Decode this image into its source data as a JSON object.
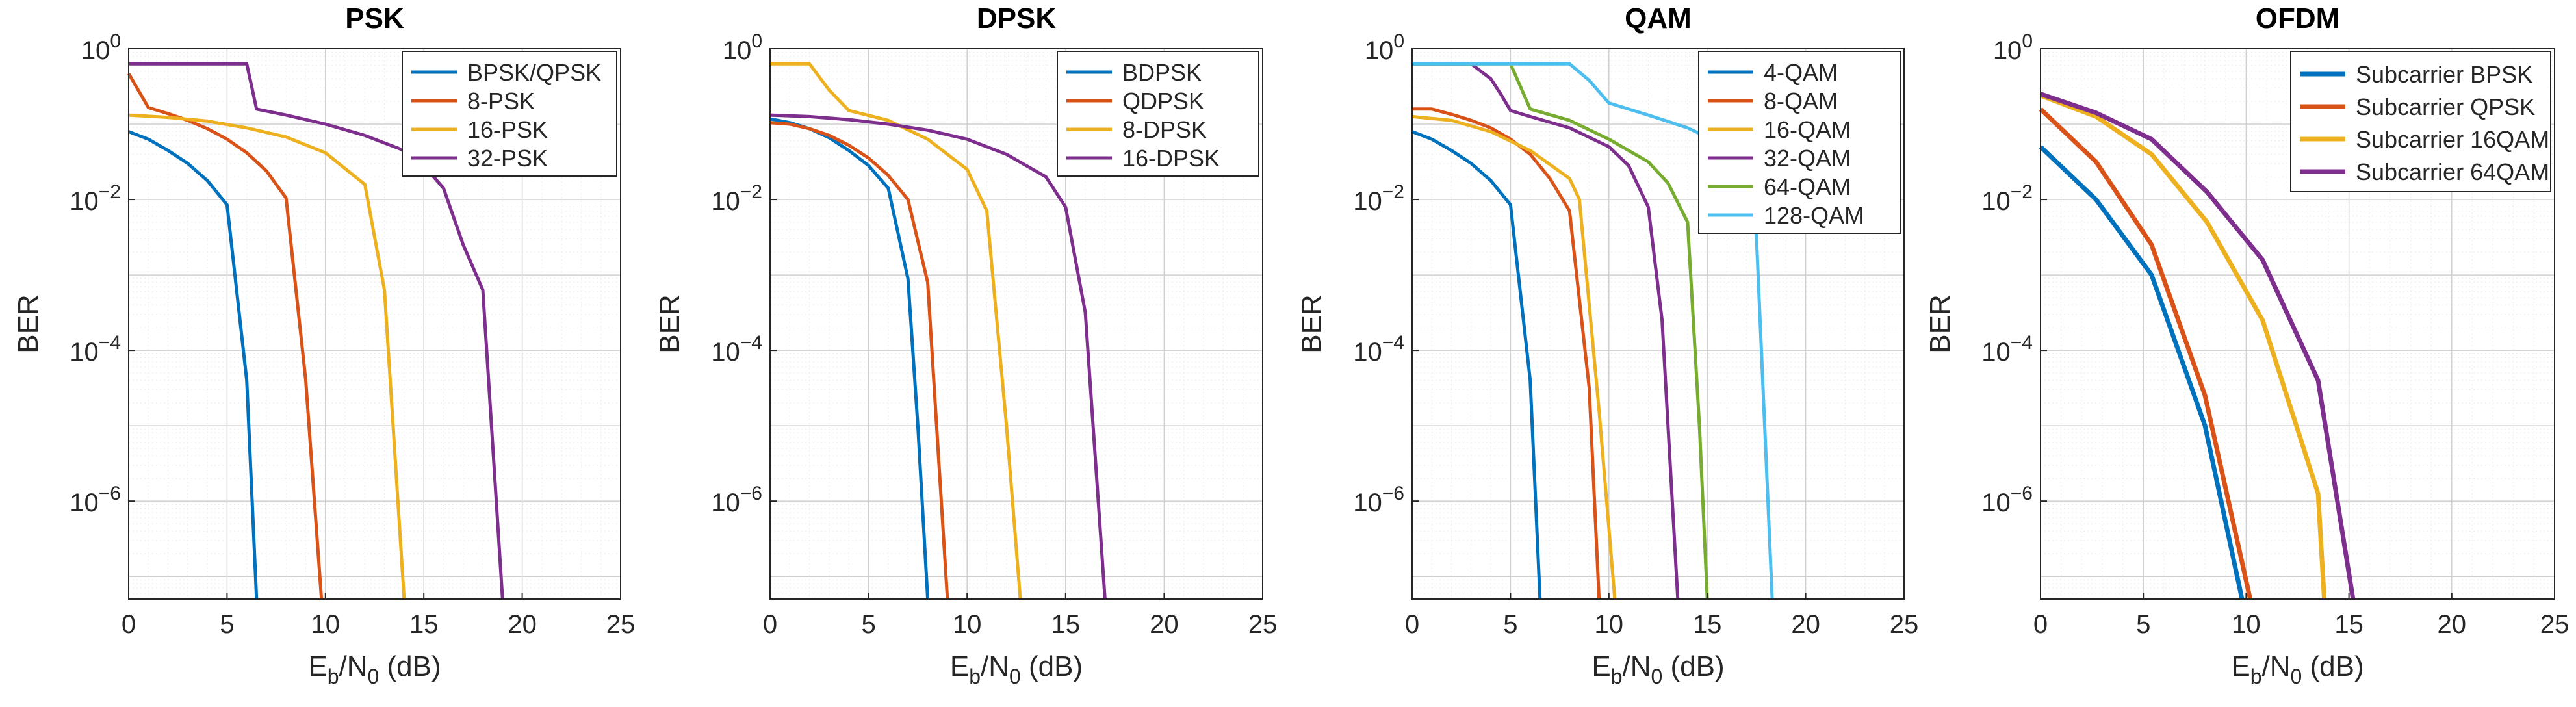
{
  "chart_data": [
    {
      "type": "line",
      "title": "PSK",
      "xlabel": "Eb/N0 (dB)",
      "ylabel": "BER",
      "xlim": [
        0,
        25
      ],
      "ylim_log10": [
        -7.3,
        0
      ],
      "xscale": "linear",
      "yscale": "log",
      "x_ticks": [
        0,
        5,
        10,
        15,
        20,
        25
      ],
      "y_ticks": [
        "10^0",
        "10^-2",
        "10^-4",
        "10^-6"
      ],
      "grid": true,
      "legend_position": "top-right",
      "series": [
        {
          "name": "BPSK/QPSK",
          "color": "#0072BD",
          "x": [
            0,
            1,
            2,
            3,
            4,
            5,
            6,
            6.5
          ],
          "log10_y": [
            -1.1,
            -1.2,
            -1.35,
            -1.52,
            -1.75,
            -2.07,
            -4.4,
            -7.3
          ]
        },
        {
          "name": "8-PSK",
          "color": "#D95319",
          "x": [
            0,
            1,
            2,
            3,
            4,
            5,
            6,
            7,
            8,
            9,
            9.8
          ],
          "log10_y": [
            -0.33,
            -0.78,
            -0.86,
            -0.95,
            -1.06,
            -1.2,
            -1.38,
            -1.62,
            -1.98,
            -4.4,
            -7.3
          ]
        },
        {
          "name": "16-PSK",
          "color": "#EDB120",
          "x": [
            0,
            2,
            4,
            6,
            8,
            10,
            12,
            13,
            14
          ],
          "log10_y": [
            -0.88,
            -0.91,
            -0.96,
            -1.05,
            -1.17,
            -1.38,
            -1.8,
            -3.2,
            -7.3
          ]
        },
        {
          "name": "32-PSK",
          "color": "#7E2F8E",
          "x": [
            0,
            6,
            6.5,
            8,
            10,
            12,
            14,
            15,
            16,
            17,
            18,
            19
          ],
          "log10_y": [
            -0.2,
            -0.2,
            -0.8,
            -0.88,
            -1.0,
            -1.15,
            -1.35,
            -1.55,
            -1.85,
            -2.6,
            -3.2,
            -7.3
          ]
        }
      ]
    },
    {
      "type": "line",
      "title": "DPSK",
      "xlabel": "Eb/N0 (dB)",
      "ylabel": "BER",
      "xlim": [
        0,
        25
      ],
      "ylim_log10": [
        -7.3,
        0
      ],
      "xscale": "linear",
      "yscale": "log",
      "x_ticks": [
        0,
        5,
        10,
        15,
        20,
        25
      ],
      "y_ticks": [
        "10^0",
        "10^-2",
        "10^-4",
        "10^-6"
      ],
      "grid": true,
      "legend_position": "top-right",
      "series": [
        {
          "name": "BDPSK",
          "color": "#0072BD",
          "x": [
            0,
            1,
            2,
            3,
            4,
            5,
            6,
            7,
            7.5,
            8
          ],
          "log10_y": [
            -0.93,
            -0.98,
            -1.06,
            -1.18,
            -1.35,
            -1.55,
            -1.85,
            -3.05,
            -5.0,
            -7.3
          ]
        },
        {
          "name": "QDPSK",
          "color": "#D95319",
          "x": [
            0,
            1,
            2,
            3,
            4,
            5,
            6,
            7,
            8,
            8.5,
            9
          ],
          "log10_y": [
            -0.98,
            -1.0,
            -1.06,
            -1.15,
            -1.28,
            -1.45,
            -1.68,
            -2.0,
            -3.1,
            -5.2,
            -7.3
          ]
        },
        {
          "name": "8-DPSK",
          "color": "#EDB120",
          "x": [
            0,
            2,
            3,
            4,
            6,
            8,
            10,
            11,
            12,
            12.7
          ],
          "log10_y": [
            -0.2,
            -0.2,
            -0.55,
            -0.82,
            -0.95,
            -1.2,
            -1.6,
            -2.15,
            -5.0,
            -7.3
          ]
        },
        {
          "name": "16-DPSK",
          "color": "#7E2F8E",
          "x": [
            0,
            2,
            4,
            6,
            8,
            10,
            12,
            14,
            15,
            16,
            17
          ],
          "log10_y": [
            -0.88,
            -0.9,
            -0.94,
            -1.0,
            -1.08,
            -1.2,
            -1.4,
            -1.7,
            -2.1,
            -3.5,
            -7.3
          ]
        }
      ]
    },
    {
      "type": "line",
      "title": "QAM",
      "xlabel": "Eb/N0 (dB)",
      "ylabel": "BER",
      "xlim": [
        0,
        25
      ],
      "ylim_log10": [
        -7.3,
        0
      ],
      "xscale": "linear",
      "yscale": "log",
      "x_ticks": [
        0,
        5,
        10,
        15,
        20,
        25
      ],
      "y_ticks": [
        "10^0",
        "10^-2",
        "10^-4",
        "10^-6"
      ],
      "grid": true,
      "legend_position": "top-right",
      "series": [
        {
          "name": "4-QAM",
          "color": "#0072BD",
          "x": [
            0,
            1,
            2,
            3,
            4,
            5,
            6,
            6.5
          ],
          "log10_y": [
            -1.1,
            -1.2,
            -1.35,
            -1.52,
            -1.75,
            -2.07,
            -4.4,
            -7.3
          ]
        },
        {
          "name": "8-QAM",
          "color": "#D95319",
          "x": [
            0,
            1,
            2,
            3,
            4,
            5,
            6,
            7,
            8,
            9,
            9.5
          ],
          "log10_y": [
            -0.8,
            -0.8,
            -0.87,
            -0.95,
            -1.05,
            -1.2,
            -1.4,
            -1.72,
            -2.15,
            -4.5,
            -7.3
          ]
        },
        {
          "name": "16-QAM",
          "color": "#EDB120",
          "x": [
            0,
            2,
            4,
            6,
            8,
            8.5,
            9.5,
            10.3
          ],
          "log10_y": [
            -0.9,
            -0.95,
            -1.1,
            -1.35,
            -1.72,
            -2.0,
            -4.8,
            -7.3
          ]
        },
        {
          "name": "32-QAM",
          "color": "#7E2F8E",
          "x": [
            0,
            3,
            4,
            4.5,
            5,
            6,
            8,
            10,
            11,
            12,
            12.7,
            13.5
          ],
          "log10_y": [
            -0.2,
            -0.2,
            -0.4,
            -0.6,
            -0.82,
            -0.9,
            -1.05,
            -1.3,
            -1.55,
            -2.1,
            -3.6,
            -7.3
          ]
        },
        {
          "name": "64-QAM",
          "color": "#77AC30",
          "x": [
            0,
            5,
            6,
            8,
            10,
            12,
            13,
            14,
            14.6,
            15
          ],
          "log10_y": [
            -0.2,
            -0.2,
            -0.8,
            -0.95,
            -1.2,
            -1.5,
            -1.78,
            -2.3,
            -5.0,
            -7.3
          ]
        },
        {
          "name": "128-QAM",
          "color": "#4DBEEE",
          "x": [
            0,
            8,
            9,
            10,
            12,
            14,
            16,
            17,
            17.5,
            18.3
          ],
          "log10_y": [
            -0.2,
            -0.2,
            -0.42,
            -0.72,
            -0.88,
            -1.05,
            -1.3,
            -1.6,
            -2.5,
            -7.3
          ]
        }
      ]
    },
    {
      "type": "line",
      "title": "OFDM",
      "xlabel": "Eb/N0 (dB)",
      "ylabel": "BER",
      "xlim": [
        0,
        25
      ],
      "ylim_log10": [
        -7.3,
        0
      ],
      "xscale": "linear",
      "yscale": "log",
      "x_ticks": [
        0,
        5,
        10,
        15,
        20,
        25
      ],
      "y_ticks": [
        "10^0",
        "10^-2",
        "10^-4",
        "10^-6"
      ],
      "grid": true,
      "legend_position": "top-right",
      "series": [
        {
          "name": "Subcarrier BPSK",
          "color": "#0072BD",
          "x": [
            0,
            2.7,
            5.4,
            8.0,
            9.8
          ],
          "log10_y": [
            -1.3,
            -2.0,
            -3.0,
            -5.0,
            -7.3
          ]
        },
        {
          "name": "Subcarrier QPSK",
          "color": "#D95319",
          "x": [
            0,
            2.7,
            5.4,
            8.0,
            10.2
          ],
          "log10_y": [
            -0.8,
            -1.5,
            -2.6,
            -4.6,
            -7.3
          ]
        },
        {
          "name": "Subcarrier 16QAM",
          "color": "#EDB120",
          "x": [
            0,
            2.7,
            5.4,
            8.1,
            10.8,
            13.5,
            13.8
          ],
          "log10_y": [
            -0.62,
            -0.9,
            -1.4,
            -2.3,
            -3.6,
            -5.9,
            -7.3
          ]
        },
        {
          "name": "Subcarrier 64QAM",
          "color": "#7E2F8E",
          "x": [
            0,
            2.7,
            5.4,
            8.1,
            10.8,
            13.5,
            15.2
          ],
          "log10_y": [
            -0.6,
            -0.85,
            -1.2,
            -1.9,
            -2.8,
            -4.4,
            -7.3
          ]
        }
      ]
    }
  ]
}
